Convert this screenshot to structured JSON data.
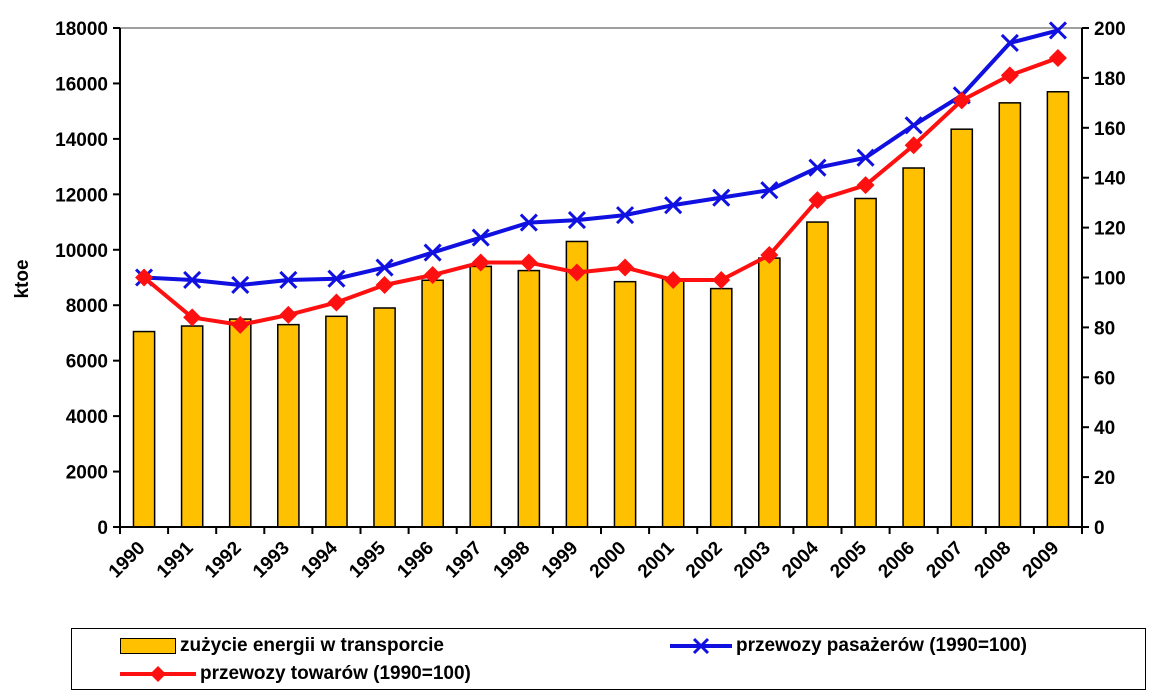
{
  "chart_data": {
    "type": "bar+line",
    "categories": [
      "1990",
      "1991",
      "1992",
      "1993",
      "1994",
      "1995",
      "1996",
      "1997",
      "1998",
      "1999",
      "2000",
      "2001",
      "2002",
      "2003",
      "2004",
      "2005",
      "2006",
      "2007",
      "2008",
      "2009"
    ],
    "ylabel": "ktoe",
    "ylim": [
      0,
      18000
    ],
    "y_ticks": [
      "0",
      "2000",
      "4000",
      "6000",
      "8000",
      "10000",
      "12000",
      "14000",
      "16000",
      "18000"
    ],
    "y2lim": [
      0,
      200
    ],
    "y2_ticks": [
      "0",
      "20",
      "40",
      "60",
      "80",
      "100",
      "120",
      "140",
      "160",
      "180",
      "200"
    ],
    "grid": false,
    "legend_position": "bottom",
    "series": [
      {
        "name": "zużycie energii w transporcie",
        "kind": "bar",
        "axis": "left",
        "color": "#FFC000",
        "values": [
          7050,
          7250,
          7500,
          7300,
          7600,
          7900,
          8900,
          9400,
          9250,
          10300,
          8850,
          8950,
          8600,
          9700,
          11000,
          11850,
          12950,
          14350,
          15300,
          15700
        ]
      },
      {
        "name": "przewozy pasażerów (1990=100)",
        "kind": "line",
        "marker": "x",
        "axis": "right",
        "color": "#1010E0",
        "values": [
          100,
          99,
          97,
          99,
          99.5,
          104,
          110,
          116,
          122,
          123,
          125,
          129,
          132,
          135,
          144,
          148,
          161,
          173,
          194,
          199
        ]
      },
      {
        "name": "przewozy towarów (1990=100)",
        "kind": "line",
        "marker": "diamond",
        "axis": "right",
        "color": "#FF1010",
        "values": [
          100,
          84,
          81,
          85,
          90,
          97,
          101,
          106,
          106,
          102,
          104,
          99,
          99,
          109,
          131,
          137,
          153,
          171,
          181,
          188
        ]
      }
    ]
  },
  "legend": {
    "bars_label": "zużycie energii w transporcie",
    "passengers_label": "przewozy pasażerów (1990=100)",
    "goods_label": "przewozy towarów (1990=100)"
  }
}
